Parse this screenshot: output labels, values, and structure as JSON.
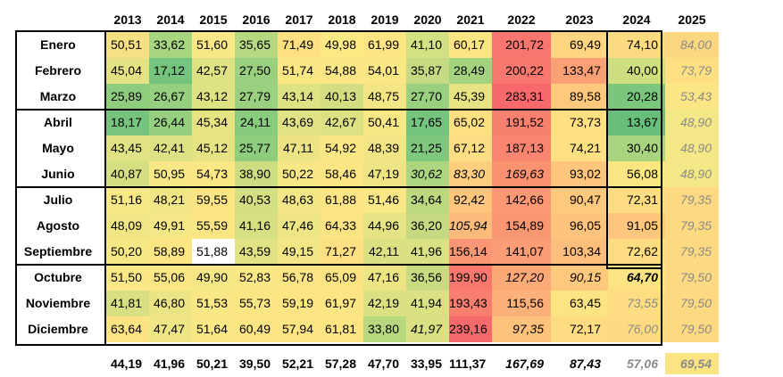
{
  "years": [
    "2013",
    "2014",
    "2015",
    "2016",
    "2017",
    "2018",
    "2019",
    "2020",
    "2021",
    "2022",
    "2023",
    "2024",
    "2025"
  ],
  "months": [
    "Enero",
    "Febrero",
    "Marzo",
    "Abril",
    "Mayo",
    "Junio",
    "Julio",
    "Agosto",
    "Septiembre",
    "Octubre",
    "Noviembre",
    "Diciembre"
  ],
  "rows": [
    {
      "values": [
        "50,51",
        "33,62",
        "51,60",
        "35,65",
        "71,49",
        "49,98",
        "61,99",
        "41,10",
        "60,17",
        "201,72",
        "69,49",
        "74,10",
        "84,00"
      ],
      "colors": [
        "#f5e184",
        "#a6d47f",
        "#f8e886",
        "#b6d880",
        "#fde080",
        "#fbe984",
        "#fde583",
        "#d4e182",
        "#fde583",
        "#f8766d",
        "#fed580",
        "#fddc81",
        "#fdd780"
      ]
    },
    {
      "values": [
        "45,04",
        "17,12",
        "42,57",
        "27,50",
        "51,74",
        "54,88",
        "54,01",
        "35,87",
        "28,49",
        "200,22",
        "133,47",
        "40,00",
        "73,79"
      ],
      "colors": [
        "#e4e383",
        "#74c47d",
        "#dde283",
        "#9ad07f",
        "#fbe884",
        "#fbe784",
        "#fbe784",
        "#c4db81",
        "#a4d27f",
        "#f8786d",
        "#fb9f75",
        "#d0de82",
        "#fee082"
      ]
    },
    {
      "values": [
        "25,89",
        "26,67",
        "43,12",
        "27,79",
        "43,14",
        "40,13",
        "48,75",
        "27,70",
        "45,39",
        "283,31",
        "89,58",
        "20,28",
        "53,43"
      ],
      "colors": [
        "#8ecc7e",
        "#96cf7f",
        "#dfe283",
        "#9ad07f",
        "#dfe283",
        "#d3de82",
        "#f2e684",
        "#99d07f",
        "#e6e383",
        "#f8696b",
        "#fec87d",
        "#7ac67d",
        "#fbe684"
      ]
    },
    {
      "values": [
        "18,17",
        "26,44",
        "45,34",
        "24,11",
        "43,69",
        "42,67",
        "50,41",
        "17,65",
        "65,02",
        "191,52",
        "73,73",
        "13,67",
        "48,90"
      ],
      "colors": [
        "#76c47d",
        "#96cf7f",
        "#e6e383",
        "#88ca7e",
        "#e1e283",
        "#dce283",
        "#f7e885",
        "#74c47d",
        "#fee082",
        "#f8806f",
        "#fee082",
        "#68bf7c",
        "#f3e885"
      ]
    },
    {
      "values": [
        "43,45",
        "42,41",
        "45,12",
        "25,77",
        "47,11",
        "54,92",
        "48,39",
        "21,25",
        "67,12",
        "187,13",
        "74,21",
        "30,40",
        "48,90"
      ],
      "colors": [
        "#e0e283",
        "#dce283",
        "#e6e383",
        "#8ecc7e",
        "#ece484",
        "#fbe784",
        "#f2e684",
        "#80c77e",
        "#fede82",
        "#f98570",
        "#fedf82",
        "#a9d47f",
        "#f3e885"
      ]
    },
    {
      "values": [
        "40,87",
        "50,95",
        "54,73",
        "38,90",
        "50,22",
        "58,46",
        "47,19",
        "30,62",
        "83,30",
        "169,63",
        "93,02",
        "56,08",
        "48,90"
      ],
      "colors": [
        "#d4df82",
        "#f8e886",
        "#fbe784",
        "#cbdc81",
        "#f7e885",
        "#fce684",
        "#ede584",
        "#acd580",
        "#fecd7e",
        "#fa9272",
        "#fec67d",
        "#fbe684",
        "#f3e885"
      ]
    },
    {
      "values": [
        "51,16",
        "48,21",
        "59,55",
        "40,53",
        "48,63",
        "61,88",
        "51,46",
        "34,64",
        "92,42",
        "142,66",
        "90,47",
        "72,31",
        "79,35"
      ],
      "colors": [
        "#f8e886",
        "#f1e685",
        "#fde583",
        "#d4df82",
        "#f2e685",
        "#fde583",
        "#f9e885",
        "#bcd980",
        "#fec67d",
        "#fb9974",
        "#fec87d",
        "#fedd82",
        "#fdda81"
      ]
    },
    {
      "values": [
        "48,09",
        "49,91",
        "55,59",
        "41,16",
        "47,46",
        "64,33",
        "44,96",
        "36,20",
        "105,94",
        "154,89",
        "96,05",
        "91,05",
        "79,35"
      ],
      "colors": [
        "#f0e684",
        "#f5e785",
        "#fce684",
        "#d6df82",
        "#eee584",
        "#fde483",
        "#e5e383",
        "#c6db81",
        "#fdbb7b",
        "#fa9773",
        "#fec47d",
        "#fec77d",
        "#fdda81"
      ]
    },
    {
      "values": [
        "50,20",
        "58,89",
        "51,88",
        "43,59",
        "49,15",
        "71,27",
        "42,11",
        "41,96",
        "156,14",
        "141,07",
        "103,34",
        "72,62",
        "79,35"
      ],
      "colors": [
        "#f6e885",
        "#fde583",
        "#faе884",
        "#e0e283",
        "#f3e785",
        "#fde082",
        "#dbe183",
        "#dae183",
        "#fa9673",
        "#fb9d75",
        "#fdbe7b",
        "#fedd82",
        "#fdda81"
      ]
    },
    {
      "values": [
        "51,50",
        "55,06",
        "49,90",
        "52,83",
        "56,78",
        "65,09",
        "47,16",
        "36,56",
        "199,90",
        "127,20",
        "90,15",
        "64,70",
        "79,50"
      ],
      "colors": [
        "#f9e885",
        "#fbe784",
        "#f5e785",
        "#fbe784",
        "#fce584",
        "#fde483",
        "#ede584",
        "#c8db81",
        "#f8786d",
        "#fca877",
        "#fec87d",
        "#fde383",
        "#fdda81"
      ]
    },
    {
      "values": [
        "41,81",
        "46,80",
        "51,53",
        "55,73",
        "59,19",
        "61,97",
        "42,19",
        "41,94",
        "193,43",
        "115,56",
        "63,45",
        "73,55",
        "79,50"
      ],
      "colors": [
        "#d8e083",
        "#ebe484",
        "#f9e885",
        "#fce684",
        "#fde583",
        "#fde583",
        "#dbe183",
        "#dae183",
        "#f87e6e",
        "#fdb17a",
        "#fde483",
        "#fedc81",
        "#fdda81"
      ]
    },
    {
      "values": [
        "63,64",
        "47,47",
        "51,64",
        "60,49",
        "57,94",
        "61,81",
        "33,80",
        "41,97",
        "239,16",
        "97,35",
        "72,17",
        "76,00",
        "79,50"
      ],
      "colors": [
        "#fde483",
        "#eee584",
        "#f9e885",
        "#fde583",
        "#fde583",
        "#fde583",
        "#b8d880",
        "#dae183",
        "#f8696b",
        "#fdc27c",
        "#fedd82",
        "#fedb81",
        "#fdda81"
      ]
    }
  ],
  "italic_cells": [
    "5-7",
    "5-8",
    "5-9",
    "7-8",
    "9-9",
    "9-10",
    "9-11",
    "11-7",
    "11-9",
    "11-12"
  ],
  "totals": [
    "44,19",
    "41,96",
    "50,21",
    "39,50",
    "52,21",
    "57,28",
    "47,70",
    "33,95",
    "111,37",
    "167,69",
    "87,43",
    "57,06",
    "69,54"
  ],
  "totals_colors": [
    "#ffffff",
    "#ffffff",
    "#ffffff",
    "#ffffff",
    "#ffffff",
    "#ffffff",
    "#ffffff",
    "#ffffff",
    "#ffffff",
    "#ffffff",
    "#ffffff",
    "#ffffff",
    "#fde483"
  ]
}
